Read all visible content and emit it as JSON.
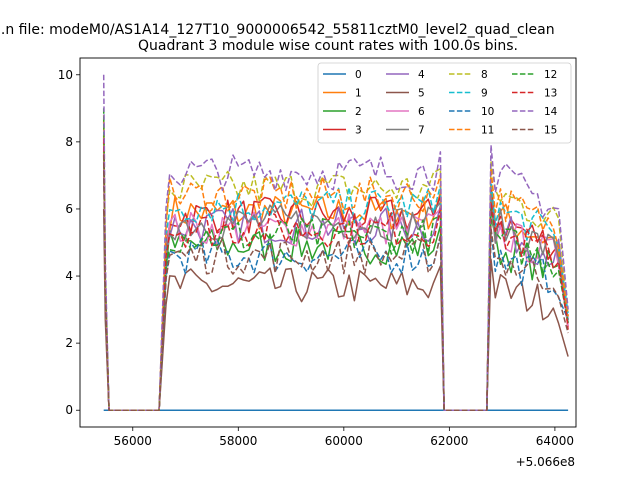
{
  "chart_data": {
    "type": "line",
    "suptitle": "...n file: modeM0/AS1A14_127T10_9000006542_55811cztM0_level2_quad_clean",
    "title": "Quadrant 3 module wise count rates with 100.0s bins.",
    "xlabel": "",
    "ylabel": "",
    "x_offset_label": "+5.066e8",
    "xlim": [
      55000,
      64400
    ],
    "ylim": [
      -0.5,
      10.5
    ],
    "x_ticks": [
      56000,
      58000,
      60000,
      62000,
      64000
    ],
    "x_tick_labels": [
      "56000",
      "58000",
      "60000",
      "62000",
      "64000"
    ],
    "y_ticks": [
      0,
      2,
      4,
      6,
      8,
      10
    ],
    "y_tick_labels": [
      "0",
      "2",
      "4",
      "6",
      "8",
      "10"
    ],
    "grid": false,
    "legend_position": "top-right",
    "legend_columns": 4,
    "segments": [
      {
        "start": 55450,
        "end": 55550
      },
      {
        "start": 56550,
        "end": 61850
      },
      {
        "start": 62750,
        "end": 64250
      }
    ],
    "series": [
      {
        "name": "0",
        "color": "#1f77b4",
        "dash": false,
        "level": 0.0,
        "spike": 0.0,
        "drop": 0.0
      },
      {
        "name": "1",
        "color": "#ff7f0e",
        "dash": false,
        "level": 5.9,
        "spike": 8.0,
        "drop": 2.5
      },
      {
        "name": "2",
        "color": "#2ca02c",
        "dash": false,
        "level": 4.9,
        "spike": 8.2,
        "drop": 2.6
      },
      {
        "name": "3",
        "color": "#d62728",
        "dash": false,
        "level": 5.8,
        "spike": 7.6,
        "drop": 2.4
      },
      {
        "name": "4",
        "color": "#9467bd",
        "dash": false,
        "level": 5.5,
        "spike": 8.0,
        "drop": 2.7
      },
      {
        "name": "5",
        "color": "#8c564b",
        "dash": false,
        "level": 3.7,
        "spike": 6.0,
        "drop": 1.6
      },
      {
        "name": "6",
        "color": "#e377c2",
        "dash": false,
        "level": 5.4,
        "spike": 7.8,
        "drop": 2.5
      },
      {
        "name": "7",
        "color": "#7f7f7f",
        "dash": false,
        "level": 5.6,
        "spike": 7.7,
        "drop": 2.6
      },
      {
        "name": "8",
        "color": "#bcbd22",
        "dash": true,
        "level": 6.6,
        "spike": 8.8,
        "drop": 2.8
      },
      {
        "name": "9",
        "color": "#17becf",
        "dash": true,
        "level": 6.1,
        "spike": 8.6,
        "drop": 2.9
      },
      {
        "name": "10",
        "color": "#1f77b4",
        "dash": true,
        "level": 4.6,
        "spike": 7.4,
        "drop": 2.7
      },
      {
        "name": "11",
        "color": "#ff7f0e",
        "dash": true,
        "level": 6.4,
        "spike": 8.7,
        "drop": 2.8
      },
      {
        "name": "12",
        "color": "#2ca02c",
        "dash": true,
        "level": 5.2,
        "spike": 9.0,
        "drop": 2.6
      },
      {
        "name": "13",
        "color": "#d62728",
        "dash": true,
        "level": 5.4,
        "spike": 8.1,
        "drop": 2.5
      },
      {
        "name": "14",
        "color": "#9467bd",
        "dash": true,
        "level": 7.1,
        "spike": 10.0,
        "drop": 3.0
      },
      {
        "name": "15",
        "color": "#8c564b",
        "dash": true,
        "level": 4.6,
        "spike": 7.6,
        "drop": 2.3
      }
    ]
  }
}
